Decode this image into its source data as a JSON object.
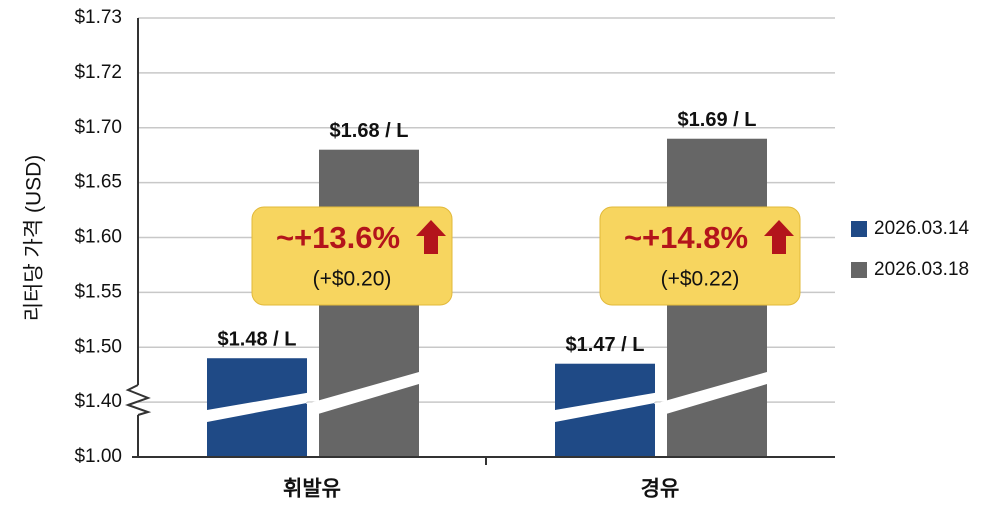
{
  "chart_data": {
    "type": "bar",
    "y_label": "리터당 가격 (USD)",
    "categories": [
      "휘발유",
      "경유"
    ],
    "series": [
      {
        "name": "2026.03.14",
        "color": "#1f4a86",
        "values": [
          1.48,
          1.47
        ],
        "value_labels": [
          "$1.48 / L",
          "$1.47 / L"
        ]
      },
      {
        "name": "2026.03.18",
        "color": "#666666",
        "values": [
          1.68,
          1.69
        ],
        "value_labels": [
          "$1.68 / L",
          "$1.69 / L"
        ]
      }
    ],
    "annotations": [
      {
        "text": "~+13.6%",
        "detail": "(+$0.20)"
      },
      {
        "text": "~+14.8%",
        "detail": "(+$0.22)"
      }
    ],
    "ylim": [
      1.0,
      1.73
    ],
    "yticks": [
      {
        "value": 1.0,
        "label": "$1.00"
      },
      {
        "value": 1.4,
        "label": "$1.40"
      },
      {
        "value": 1.5,
        "label": "$1.50"
      },
      {
        "value": 1.55,
        "label": "$1.55"
      },
      {
        "value": 1.6,
        "label": "$1.60"
      },
      {
        "value": 1.65,
        "label": "$1.65"
      },
      {
        "value": 1.7,
        "label": "$1.70"
      },
      {
        "value": 1.72,
        "label": "$1.72"
      },
      {
        "value": 1.73,
        "label": "$1.73"
      }
    ],
    "axis_break": true,
    "grid": true,
    "legend": "right"
  }
}
